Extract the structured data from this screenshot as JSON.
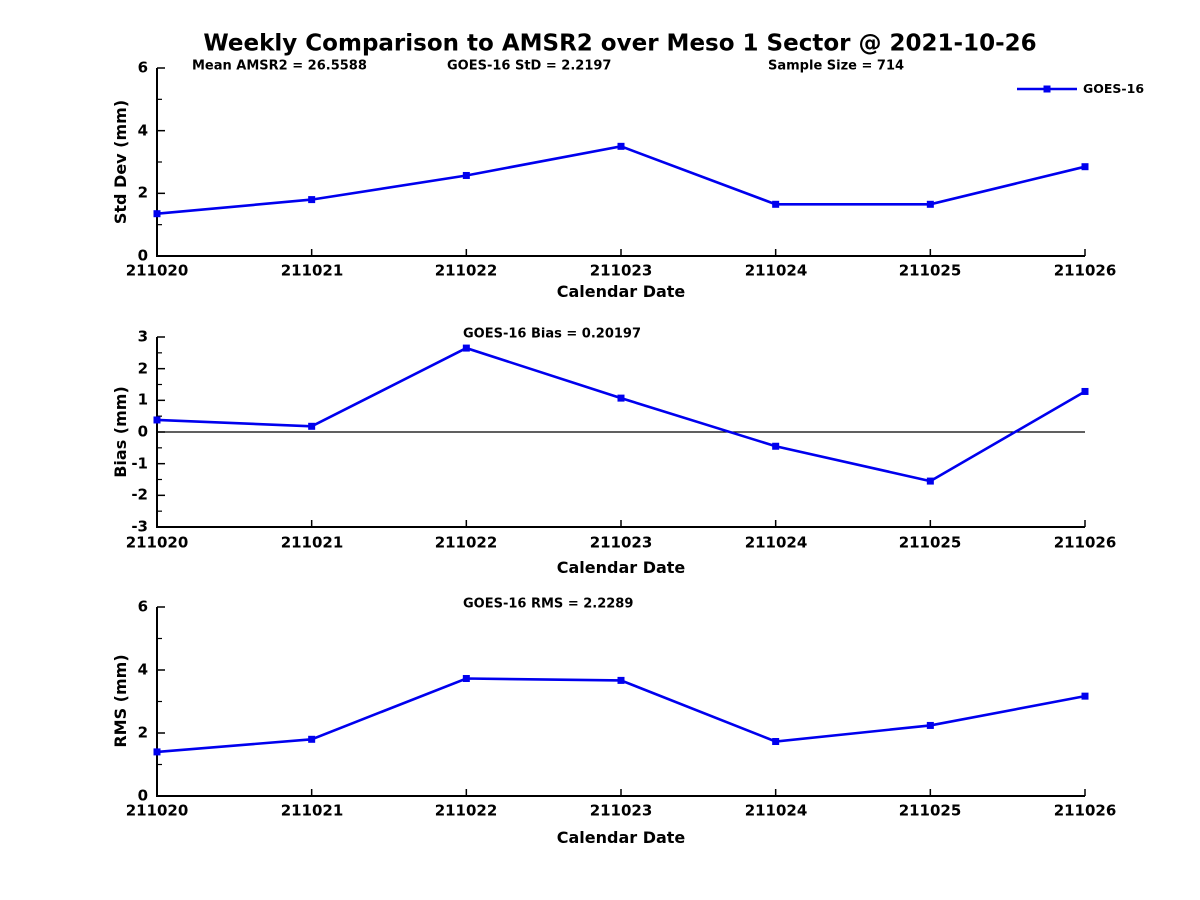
{
  "title": "Weekly Comparison to AMSR2 over Meso 1 Sector @ 2021-10-26",
  "legend": {
    "label": "GOES-16"
  },
  "colors": {
    "line": "#0000EE",
    "axis": "#000000",
    "zero_line": "#000000",
    "text": "#000000",
    "background": "#FFFFFF"
  },
  "chart_data": [
    {
      "type": "line",
      "panel": "std-dev",
      "annotations": [
        "Mean AMSR2 = 26.5588",
        "GOES-16 StD = 2.2197",
        "Sample Size = 714"
      ],
      "xlabel": "Calendar Date",
      "ylabel": "Std Dev (mm)",
      "categories": [
        "211020",
        "211021",
        "211022",
        "211023",
        "211024",
        "211025",
        "211026"
      ],
      "series": [
        {
          "name": "GOES-16",
          "values": [
            1.35,
            1.8,
            2.57,
            3.5,
            1.65,
            1.65,
            2.85
          ]
        }
      ],
      "ylim": [
        0,
        6
      ],
      "yticks": [
        0,
        2,
        4,
        6
      ],
      "grid": false,
      "legend_position": "top-right",
      "marker": "square"
    },
    {
      "type": "line",
      "panel": "bias",
      "annotation": "GOES-16 Bias  = 0.20197",
      "xlabel": "Calendar Date",
      "ylabel": "Bias (mm)",
      "categories": [
        "211020",
        "211021",
        "211022",
        "211023",
        "211024",
        "211025",
        "211026"
      ],
      "series": [
        {
          "name": "GOES-16",
          "values": [
            0.38,
            0.18,
            2.65,
            1.07,
            -0.45,
            -1.55,
            1.28
          ]
        }
      ],
      "ylim": [
        -3,
        3
      ],
      "yticks": [
        -3,
        -2,
        -1,
        0,
        1,
        2,
        3
      ],
      "zero_line": true,
      "grid": false,
      "marker": "square"
    },
    {
      "type": "line",
      "panel": "rms",
      "annotation": "GOES-16 RMS = 2.2289",
      "xlabel": "Calendar Date",
      "ylabel": "RMS (mm)",
      "categories": [
        "211020",
        "211021",
        "211022",
        "211023",
        "211024",
        "211025",
        "211026"
      ],
      "series": [
        {
          "name": "GOES-16",
          "values": [
            1.4,
            1.8,
            3.73,
            3.67,
            1.73,
            2.24,
            3.17
          ]
        }
      ],
      "ylim": [
        0,
        6
      ],
      "yticks": [
        0,
        2,
        4,
        6
      ],
      "grid": false,
      "marker": "square"
    }
  ]
}
